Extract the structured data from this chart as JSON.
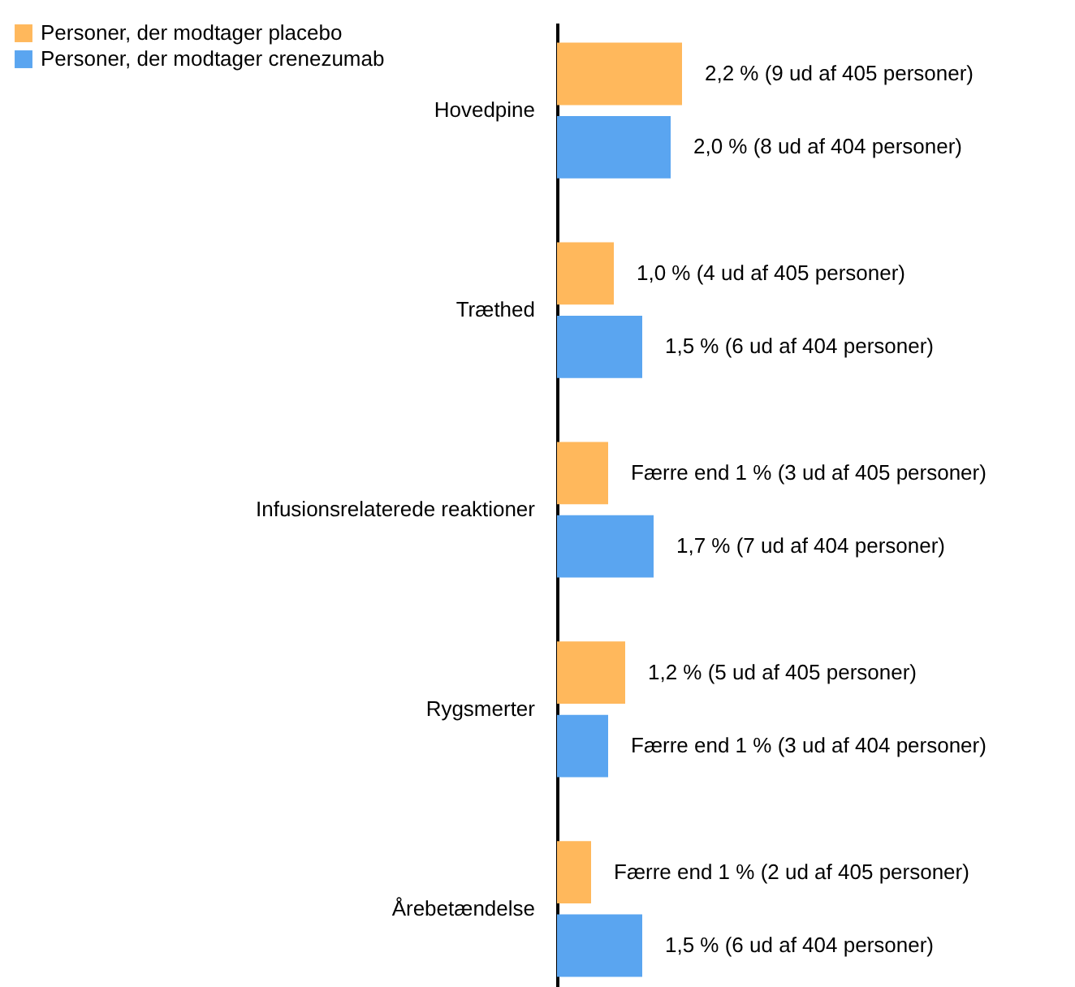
{
  "chart_data": {
    "type": "bar",
    "orientation": "horizontal",
    "legend": "top left",
    "categories": [
      "Hovedpine",
      "Træthed",
      "Infusionsrelaterede reaktioner",
      "Rygsmerter",
      "Årebetændelse"
    ],
    "series": [
      {
        "name": "Personer, der modtager placebo",
        "color": "#ffb85c",
        "values": [
          2.2,
          1.0,
          0.9,
          1.2,
          0.6
        ],
        "value_labels": [
          "2,2 % (9 ud af 405 personer)",
          "1,0 % (4 ud af 405 personer)",
          "Færre end 1 % (3 ud af 405 personer)",
          "1,2 % (5 ud af 405 personer)",
          "Færre end 1 % (2 ud af 405 personer)"
        ]
      },
      {
        "name": "Personer, der modtager crenezumab",
        "color": "#5aa5f0",
        "values": [
          2.0,
          1.5,
          1.7,
          0.9,
          1.5
        ],
        "value_labels": [
          "2,0 % (8 ud af 404 personer)",
          "1,5 % (6 ud af 404 personer)",
          "1,7 % (7 ud af 404 personer)",
          "Færre end 1 % (3 ud af 404 personer)",
          "1,5 % (6 ud af 404 personer)"
        ]
      }
    ]
  }
}
